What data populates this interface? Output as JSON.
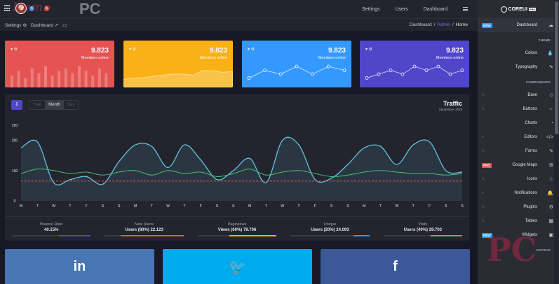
{
  "header": {
    "notif_count_1": "5",
    "notif_count_2": "5",
    "watermark_text": "Nemo",
    "watermark_pc": "PC",
    "nav": [
      "Settings",
      "Users",
      "Dashboard"
    ]
  },
  "subbar": {
    "settings": "Settings",
    "dashboard": "Dashboard",
    "crumbs": [
      "Dashboard",
      "/",
      "Admin",
      "/",
      "Home"
    ]
  },
  "cards": [
    {
      "value": "9.823",
      "label": "Members online",
      "color": "#e55353",
      "kind": "bars",
      "series": [
        5,
        7,
        4,
        8,
        6,
        9,
        5,
        7,
        8,
        6,
        9,
        7,
        5,
        8,
        6
      ]
    },
    {
      "value": "9.823",
      "label": "Members online",
      "color": "#f9b115",
      "kind": "area",
      "series": [
        78,
        72,
        71,
        65,
        60,
        56,
        55,
        60,
        40,
        42,
        48,
        45
      ]
    },
    {
      "value": "9.823",
      "label": "Members online",
      "color": "#3399ff",
      "kind": "line",
      "series": [
        1,
        3,
        2,
        4,
        2,
        4,
        3
      ]
    },
    {
      "value": "9.823",
      "label": "Members online",
      "color": "#4f46c9",
      "kind": "line",
      "series": [
        1,
        2,
        3,
        2,
        4,
        3,
        4,
        2,
        3
      ]
    }
  ],
  "traffic": {
    "title": "Traffic",
    "subtitle": "September 2019",
    "segments": [
      "Year",
      "Month",
      "Day"
    ],
    "active_segment": "Month"
  },
  "chart_data": {
    "type": "line",
    "title": "Traffic",
    "subtitle": "September 2019",
    "ylim": [
      0,
      250
    ],
    "yticks": [
      0,
      100,
      200,
      250
    ],
    "categories": [
      "M",
      "T",
      "W",
      "T",
      "F",
      "S",
      "S",
      "M",
      "T",
      "W",
      "T",
      "F",
      "S",
      "S",
      "M",
      "T",
      "W",
      "T",
      "F",
      "S",
      "S",
      "M",
      "T",
      "W",
      "T",
      "F",
      "S",
      "S"
    ],
    "series": [
      {
        "color": "#63c2de",
        "fill": true,
        "values": [
          175,
          195,
          60,
          70,
          80,
          55,
          130,
          185,
          180,
          110,
          185,
          135,
          70,
          100,
          140,
          60,
          200,
          185,
          70,
          75,
          120,
          175,
          180,
          120,
          185,
          195,
          100,
          95
        ]
      },
      {
        "color": "#4dbd74",
        "fill": false,
        "values": [
          90,
          105,
          100,
          90,
          95,
          85,
          95,
          100,
          85,
          100,
          90,
          95,
          80,
          90,
          105,
          85,
          95,
          100,
          90,
          80,
          85,
          95,
          100,
          95,
          90,
          90,
          85,
          90
        ]
      },
      {
        "color": "#e55353",
        "fill": false,
        "dashed": true,
        "values": [
          65,
          65,
          65,
          65,
          65,
          65,
          65,
          65,
          65,
          65,
          65,
          65,
          65,
          65,
          65,
          65,
          65,
          65,
          65,
          65,
          65,
          65,
          65,
          65,
          65,
          65,
          65,
          65
        ]
      }
    ]
  },
  "stats": [
    {
      "title": "Bounce Rate",
      "value": "40.15%",
      "percent": 40,
      "color": "#4f46c9"
    },
    {
      "title": "New Users",
      "value": "Users (80%) 22.123",
      "percent": 80,
      "color": "#e55353"
    },
    {
      "title": "Pageviews",
      "value": "Views (60%) 78.706",
      "percent": 60,
      "color": "#f9b115"
    },
    {
      "title": "Unique",
      "value": "Users (20%) 24.093",
      "percent": 20,
      "color": "#3399ff"
    },
    {
      "title": "Visits",
      "value": "Users (40%) 29.703",
      "percent": 40,
      "color": "#4dbd74"
    }
  ],
  "social": [
    {
      "name": "linkedin",
      "glyph": "in",
      "color": "#4875b4"
    },
    {
      "name": "twitter",
      "glyph": "🐦",
      "color": "#00aced"
    },
    {
      "name": "facebook",
      "glyph": "f",
      "color": "#3b5998"
    }
  ],
  "sidebar": {
    "brand": "COREUI",
    "brand_tag": "PRO",
    "items": [
      {
        "type": "item",
        "label": "Dashboard",
        "icon": "☁",
        "tag": "NEW",
        "tag_color": "#3399ff",
        "active": true
      },
      {
        "type": "title",
        "label": "THEME"
      },
      {
        "type": "item",
        "label": "Colors",
        "icon": "💧"
      },
      {
        "type": "item",
        "label": "Typography",
        "icon": "✎"
      },
      {
        "type": "title",
        "label": "COMPONENTS"
      },
      {
        "type": "item",
        "label": "Base",
        "icon": "◇",
        "chevron": true
      },
      {
        "type": "item",
        "label": "Buttons",
        "icon": "☞",
        "chevron": true
      },
      {
        "type": "item",
        "label": "Charts",
        "icon": "◔"
      },
      {
        "type": "item",
        "label": "Editors",
        "icon": "</>",
        "chevron": true
      },
      {
        "type": "item",
        "label": "Forms",
        "icon": "✎",
        "chevron": true
      },
      {
        "type": "item",
        "label": "Google Maps",
        "icon": "⊞",
        "tag": "PRO",
        "tag_color": "#e55353"
      },
      {
        "type": "item",
        "label": "Icons",
        "icon": "☆",
        "chevron": true
      },
      {
        "type": "item",
        "label": "Notifications",
        "icon": "🔔",
        "chevron": true
      },
      {
        "type": "item",
        "label": "Plugins",
        "icon": "⚙",
        "chevron": true
      },
      {
        "type": "item",
        "label": "Tables",
        "icon": "▦",
        "chevron": true
      },
      {
        "type": "item",
        "label": "Widgets",
        "icon": "▣",
        "tag": "NEW",
        "tag_color": "#3399ff"
      },
      {
        "type": "title",
        "label": "EXTRAS"
      }
    ]
  }
}
